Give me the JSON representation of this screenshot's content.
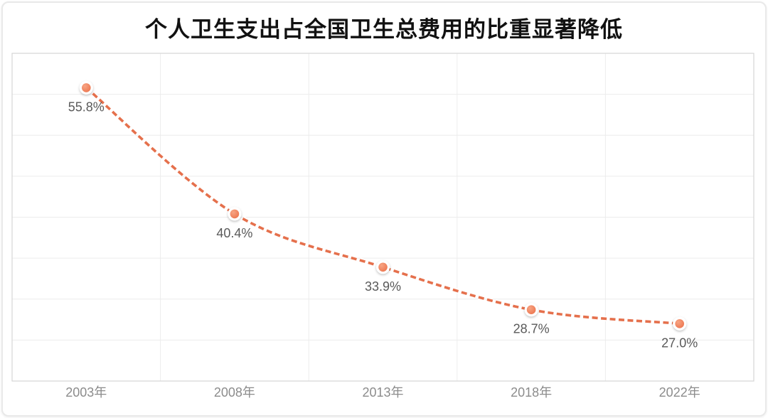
{
  "card": {
    "title": "个人卫生支出占全国卫生总费用的比重显著降低"
  },
  "chart_data": {
    "type": "line",
    "title": "个人卫生支出占全国卫生总费用的比重显著降低",
    "categories": [
      "2003年",
      "2008年",
      "2013年",
      "2018年",
      "2022年"
    ],
    "values": [
      55.8,
      40.4,
      33.9,
      28.7,
      27.0
    ],
    "point_labels": [
      "55.8%",
      "40.4%",
      "33.9%",
      "28.7%",
      "27.0%"
    ],
    "xlabel": "",
    "ylabel": "",
    "ylim": [
      20,
      60
    ],
    "y_grid_step": 5,
    "grid": true,
    "legend": "none",
    "line_style": "dashed-smooth",
    "colors": {
      "line": "#e5704c",
      "marker_inner": "#ec744d",
      "marker_inner_light": "#f7a483",
      "marker_ring": "#ffffff",
      "grid": "#ececec",
      "plot_border": "#d6d6d6",
      "data_label": "#595959",
      "axis_label": "#8c8c8c",
      "title": "#111111"
    }
  }
}
